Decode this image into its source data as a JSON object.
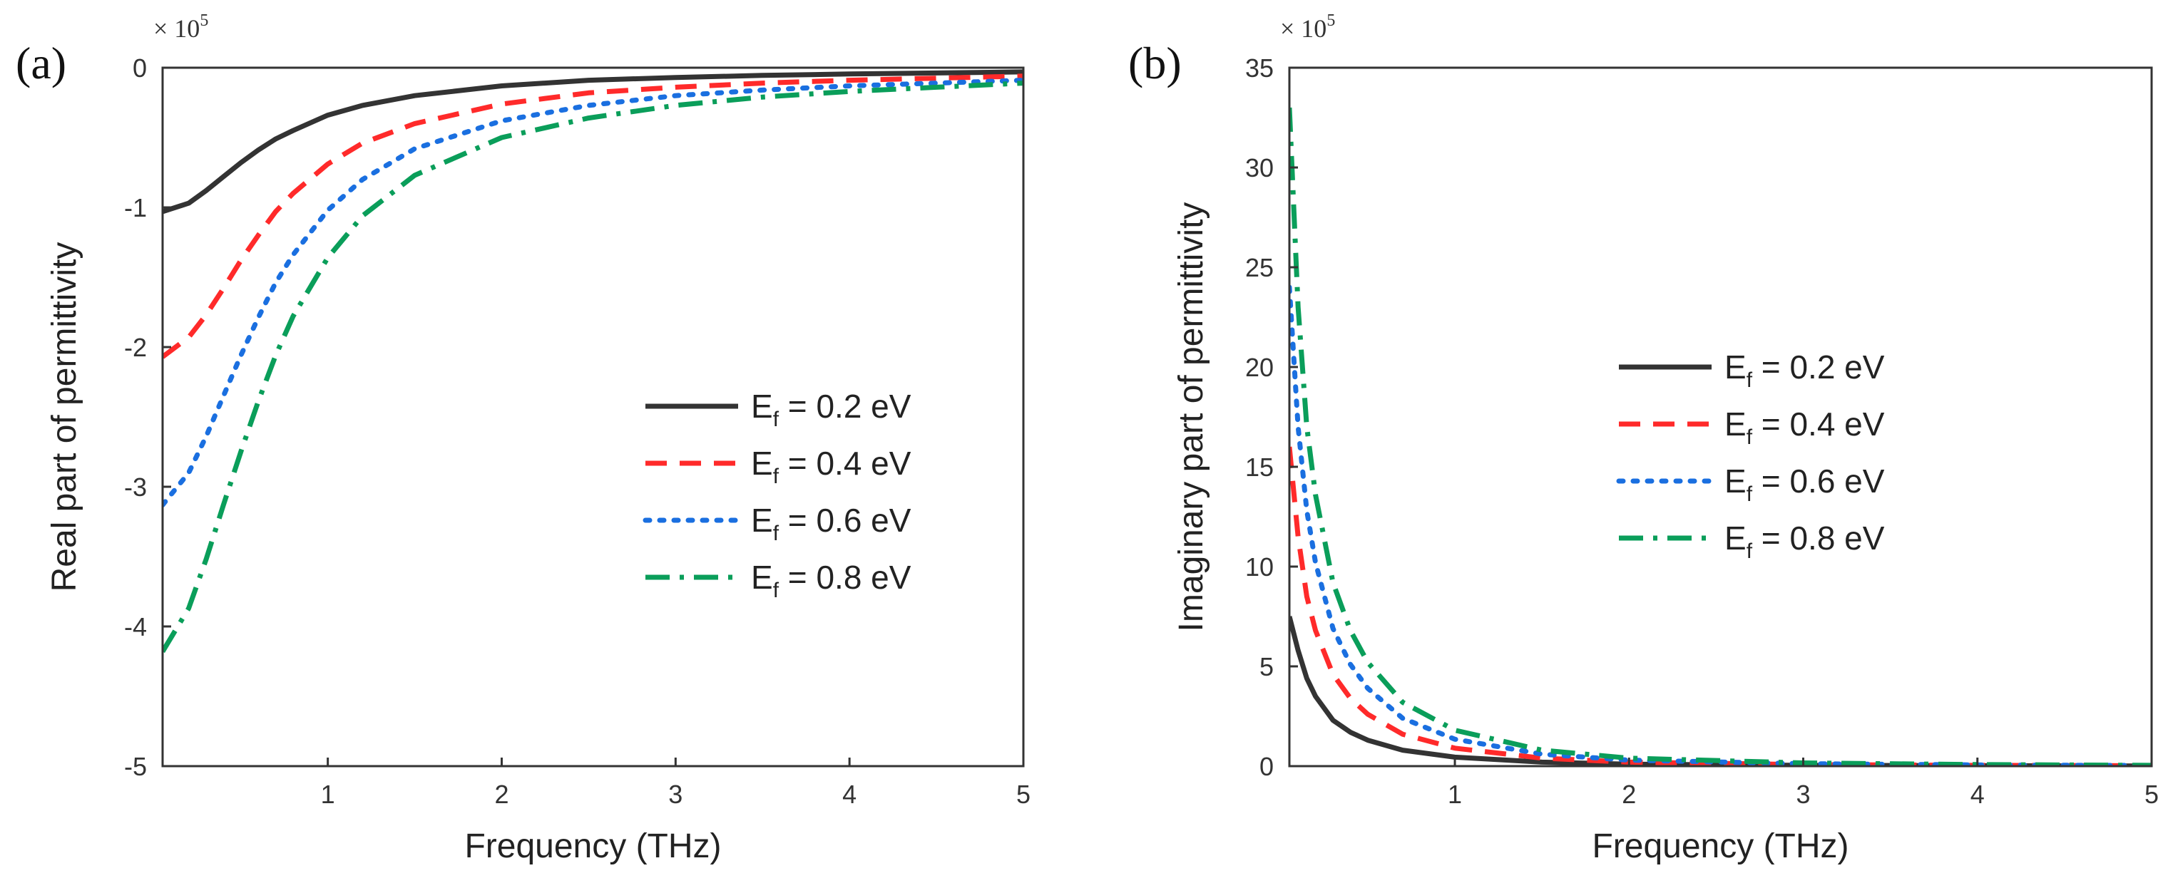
{
  "chart_data": [
    {
      "type": "line",
      "panel_label": "(a)",
      "multiplier": {
        "base": "× 10",
        "exp": "5"
      },
      "xlabel": "Frequency (THz)",
      "ylabel": "Real part of permittivity",
      "xlim": [
        0.05,
        5
      ],
      "ylim": [
        -5,
        0
      ],
      "xticks": [
        1,
        2,
        3,
        4,
        5
      ],
      "yticks": [
        0,
        -1,
        -2,
        -3,
        -4,
        -5
      ],
      "yticklabels": [
        "0",
        "-1",
        "-2",
        "-3",
        "-4",
        "-5"
      ],
      "legend_position": "center-right",
      "series": [
        {
          "name": "E_f = 0.2 eV",
          "label_main": "E",
          "label_sub": "f",
          "label_rest": " = 0.2 eV",
          "color": "#333333",
          "style": "solid",
          "x": [
            0.05,
            0.2,
            0.3,
            0.4,
            0.5,
            0.6,
            0.7,
            0.8,
            1.0,
            1.2,
            1.5,
            2.0,
            2.5,
            3.0,
            3.5,
            4.0,
            4.5,
            5.0
          ],
          "y": [
            -1.03,
            -0.97,
            -0.88,
            -0.78,
            -0.68,
            -0.59,
            -0.51,
            -0.45,
            -0.34,
            -0.27,
            -0.2,
            -0.13,
            -0.09,
            -0.07,
            -0.055,
            -0.045,
            -0.038,
            -0.03
          ]
        },
        {
          "name": "E_f = 0.4 eV",
          "label_main": "E",
          "label_sub": "f",
          "label_rest": " = 0.4 eV",
          "color": "#ff2a2a",
          "style": "dashed",
          "x": [
            0.05,
            0.2,
            0.3,
            0.4,
            0.5,
            0.6,
            0.7,
            0.8,
            1.0,
            1.2,
            1.5,
            2.0,
            2.5,
            3.0,
            3.5,
            4.0,
            4.5,
            5.0
          ],
          "y": [
            -2.07,
            -1.93,
            -1.77,
            -1.58,
            -1.38,
            -1.2,
            -1.03,
            -0.9,
            -0.69,
            -0.54,
            -0.4,
            -0.26,
            -0.18,
            -0.14,
            -0.11,
            -0.09,
            -0.075,
            -0.06
          ]
        },
        {
          "name": "E_f = 0.6 eV",
          "label_main": "E",
          "label_sub": "f",
          "label_rest": " = 0.6 eV",
          "color": "#1a6fe0",
          "style": "dotted",
          "x": [
            0.05,
            0.2,
            0.3,
            0.4,
            0.5,
            0.6,
            0.7,
            0.8,
            1.0,
            1.2,
            1.5,
            2.0,
            2.5,
            3.0,
            3.5,
            4.0,
            4.5,
            5.0
          ],
          "y": [
            -3.13,
            -2.9,
            -2.64,
            -2.35,
            -2.06,
            -1.79,
            -1.54,
            -1.34,
            -1.02,
            -0.8,
            -0.58,
            -0.38,
            -0.27,
            -0.2,
            -0.16,
            -0.13,
            -0.11,
            -0.09
          ]
        },
        {
          "name": "E_f = 0.8 eV",
          "label_main": "E",
          "label_sub": "f",
          "label_rest": " = 0.8 eV",
          "color": "#0a9e5a",
          "style": "dashdot",
          "x": [
            0.05,
            0.2,
            0.3,
            0.4,
            0.5,
            0.6,
            0.7,
            0.8,
            1.0,
            1.2,
            1.5,
            2.0,
            2.5,
            3.0,
            3.5,
            4.0,
            4.5,
            5.0
          ],
          "y": [
            -4.18,
            -3.87,
            -3.52,
            -3.13,
            -2.75,
            -2.39,
            -2.06,
            -1.78,
            -1.36,
            -1.06,
            -0.77,
            -0.5,
            -0.36,
            -0.27,
            -0.21,
            -0.17,
            -0.14,
            -0.11
          ]
        }
      ]
    },
    {
      "type": "line",
      "panel_label": "(b)",
      "multiplier": {
        "base": "× 10",
        "exp": "5"
      },
      "xlabel": "Frequency (THz)",
      "ylabel": "Imaginary part of permittivity",
      "xlim": [
        0.05,
        5
      ],
      "ylim": [
        0,
        35
      ],
      "xticks": [
        1,
        2,
        3,
        4,
        5
      ],
      "yticks": [
        0,
        5,
        10,
        15,
        20,
        25,
        30,
        35
      ],
      "yticklabels": [
        "0",
        "5",
        "10",
        "15",
        "20",
        "25",
        "30",
        "35"
      ],
      "legend_position": "center-right",
      "series": [
        {
          "name": "E_f = 0.2 eV",
          "label_main": "E",
          "label_sub": "f",
          "label_rest": " = 0.2 eV",
          "color": "#333333",
          "style": "solid",
          "x": [
            0.05,
            0.1,
            0.15,
            0.2,
            0.3,
            0.4,
            0.5,
            0.7,
            1.0,
            1.5,
            2.0,
            3.0,
            4.0,
            5.0
          ],
          "y": [
            7.5,
            5.8,
            4.4,
            3.5,
            2.3,
            1.7,
            1.3,
            0.8,
            0.45,
            0.2,
            0.1,
            0.04,
            0.02,
            0.01
          ]
        },
        {
          "name": "E_f = 0.4 eV",
          "label_main": "E",
          "label_sub": "f",
          "label_rest": " = 0.4 eV",
          "color": "#ff2a2a",
          "style": "dashed",
          "x": [
            0.05,
            0.1,
            0.15,
            0.2,
            0.3,
            0.4,
            0.5,
            0.7,
            1.0,
            1.5,
            2.0,
            3.0,
            4.0,
            5.0
          ],
          "y": [
            16,
            11.5,
            8.5,
            6.8,
            4.6,
            3.4,
            2.6,
            1.6,
            0.9,
            0.4,
            0.2,
            0.08,
            0.04,
            0.02
          ]
        },
        {
          "name": "E_f = 0.6 eV",
          "label_main": "E",
          "label_sub": "f",
          "label_rest": " = 0.6 eV",
          "color": "#1a6fe0",
          "style": "dotted",
          "x": [
            0.05,
            0.1,
            0.15,
            0.2,
            0.3,
            0.4,
            0.5,
            0.7,
            1.0,
            1.5,
            2.0,
            3.0,
            4.0,
            5.0
          ],
          "y": [
            24,
            17,
            12.8,
            10.2,
            6.9,
            5.1,
            3.9,
            2.4,
            1.35,
            0.6,
            0.3,
            0.12,
            0.06,
            0.03
          ]
        },
        {
          "name": "E_f = 0.8 eV",
          "label_main": "E",
          "label_sub": "f",
          "label_rest": " = 0.8 eV",
          "color": "#0a9e5a",
          "style": "dashdot",
          "x": [
            0.05,
            0.1,
            0.15,
            0.2,
            0.3,
            0.4,
            0.5,
            0.7,
            1.0,
            1.5,
            2.0,
            3.0,
            4.0,
            5.0
          ],
          "y": [
            33,
            23,
            17,
            13.6,
            9.2,
            6.8,
            5.2,
            3.2,
            1.8,
            0.8,
            0.4,
            0.16,
            0.08,
            0.04
          ]
        }
      ]
    }
  ]
}
